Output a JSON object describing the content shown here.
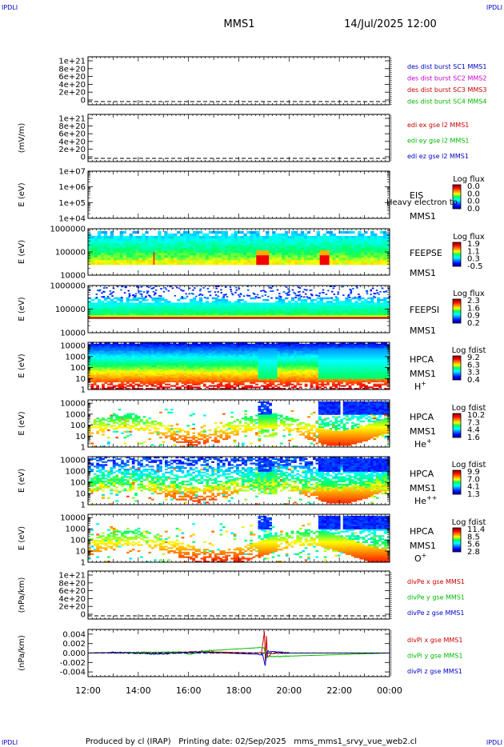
{
  "header": {
    "corner_tl": "IPDLI",
    "corner_tr": "IPDLI",
    "corner_bl": "IPDLI",
    "corner_br": "IPDLI",
    "title": "MMS1",
    "date": "14/Jul/2025 12:00"
  },
  "footer": {
    "text": "Produced by cl (IRAP)   Printing date: 02/Sep/2025   mms_mms1_srvy_vue_web2.cl"
  },
  "colors": {
    "blue": "#0000cc",
    "magenta": "#cc00cc",
    "red": "#cc0000",
    "green": "#00bb00"
  },
  "chart_data": [
    {
      "type": "line",
      "id": "des-dist",
      "ylabel": "",
      "yticks": [
        "1e+21",
        "8e+20",
        "6e+20",
        "4e+20",
        "2e+20",
        "0"
      ],
      "legend": [
        {
          "text": "des dist burst SC1 MMS1",
          "color": "#0000cc"
        },
        {
          "text": "des dist burst SC2 MMS2",
          "color": "#cc00cc"
        },
        {
          "text": "des dist burst SC3 MMS3",
          "color": "#cc0000"
        },
        {
          "text": "des dist burst SC4 MMS4",
          "color": "#00bb00"
        }
      ],
      "series": []
    },
    {
      "type": "line",
      "id": "edi",
      "ylabel": "(mV/m)",
      "yticks": [
        "1e+21",
        "8e+20",
        "6e+20",
        "4e+20",
        "2e+20",
        "0"
      ],
      "legend": [
        {
          "text": "edi ex gse l2 MMS1",
          "color": "#cc0000"
        },
        {
          "text": "edi ey gse l2 MMS1",
          "color": "#00bb00"
        },
        {
          "text": "edi ez gse l2 MMS1",
          "color": "#0000cc"
        }
      ],
      "series": []
    },
    {
      "type": "heatmap",
      "id": "eis",
      "ylabel": "E (eV)",
      "yticks": [
        "1e+07",
        "1e+06",
        "1e+05",
        "1e+04"
      ],
      "labels": [
        "EIS",
        "MMS1"
      ],
      "overlay": "Heavy electron to",
      "cbar_title": "Log flux",
      "cbar_ticks": [
        "0.0",
        "0.0",
        "0.0",
        "0.0"
      ],
      "yrange_log": [
        4,
        7
      ],
      "empty": true
    },
    {
      "type": "heatmap",
      "id": "feepse",
      "ylabel": "E (eV)",
      "yticks": [
        "1000000",
        "100000",
        "10000"
      ],
      "labels": [
        "FEEPSE",
        "MMS1"
      ],
      "cbar_title": "Log flux",
      "cbar_ticks": [
        "1.9",
        "1.1",
        "0.3",
        "-0.5"
      ],
      "yrange_log": [
        4,
        6
      ],
      "band_log": [
        4.45,
        5.9
      ]
    },
    {
      "type": "heatmap",
      "id": "feepsi",
      "ylabel": "E (eV)",
      "yticks": [
        "1000000",
        "100000",
        "10000"
      ],
      "labels": [
        "FEEPSI",
        "MMS1"
      ],
      "cbar_title": "Log flux",
      "cbar_ticks": [
        "2.3",
        "1.6",
        "0.9",
        "0.2"
      ],
      "yrange_log": [
        4,
        6
      ],
      "band_log": [
        4.6,
        5.5
      ]
    },
    {
      "type": "heatmap",
      "id": "hpca-h",
      "ylabel": "E (eV)",
      "yticks": [
        "10000",
        "1000",
        "100",
        "10",
        "1"
      ],
      "labels": [
        "HPCA",
        "MMS1"
      ],
      "species": "H",
      "charge": "+",
      "cbar_title": "Log fdist",
      "cbar_ticks": [
        "9.2",
        "6.3",
        "3.3",
        "0.4"
      ],
      "yrange_log": [
        0,
        4.3
      ]
    },
    {
      "type": "heatmap",
      "id": "hpca-he",
      "ylabel": "E (eV)",
      "yticks": [
        "10000",
        "1000",
        "100",
        "10",
        "1"
      ],
      "labels": [
        "HPCA",
        "MMS1"
      ],
      "species": "He",
      "charge": "+",
      "cbar_title": "Log fdist",
      "cbar_ticks": [
        "10.2",
        "7.3",
        "4.4",
        "1.6"
      ],
      "yrange_log": [
        0,
        4.3
      ]
    },
    {
      "type": "heatmap",
      "id": "hpca-he2",
      "ylabel": "E (eV)",
      "yticks": [
        "10000",
        "1000",
        "100",
        "10",
        "1"
      ],
      "labels": [
        "HPCA",
        "MMS1"
      ],
      "species": "He",
      "charge": "++",
      "cbar_title": "Log fdist",
      "cbar_ticks": [
        "9.9",
        "7.0",
        "4.1",
        "1.3"
      ],
      "yrange_log": [
        0,
        4.3
      ]
    },
    {
      "type": "heatmap",
      "id": "hpca-o",
      "ylabel": "E (eV)",
      "yticks": [
        "10000",
        "1000",
        "100",
        "10",
        "1"
      ],
      "labels": [
        "HPCA",
        "MMS1"
      ],
      "species": "O",
      "charge": "+",
      "cbar_title": "Log fdist",
      "cbar_ticks": [
        "11.4",
        "8.5",
        "5.6",
        "2.8"
      ],
      "yrange_log": [
        0,
        4.3
      ]
    },
    {
      "type": "line",
      "id": "divpe",
      "ylabel": "(nPa/km)",
      "yticks": [
        "1e+21",
        "8e+20",
        "6e+20",
        "4e+20",
        "2e+20",
        "0"
      ],
      "legend": [
        {
          "text": "divPe x gse MMS1",
          "color": "#cc0000"
        },
        {
          "text": "divPe y gse MMS1",
          "color": "#00bb00"
        },
        {
          "text": "divPe z gse MMS1",
          "color": "#0000cc"
        }
      ],
      "series": []
    },
    {
      "type": "line",
      "id": "divpi",
      "ylabel": "(nPa/km)",
      "yticks": [
        "0.004",
        "0.002",
        "0.000",
        "-0.002",
        "-0.004"
      ],
      "ylim": [
        -0.005,
        0.005
      ],
      "legend": [
        {
          "text": "divPi x gse MMS1",
          "color": "#cc0000"
        },
        {
          "text": "divPi y gse MMS1",
          "color": "#00bb00"
        },
        {
          "text": "divPi z gse MMS1",
          "color": "#0000cc"
        }
      ],
      "series": [
        {
          "name": "x",
          "color": "#cc0000",
          "points": [
            [
              12.0,
              0
            ],
            [
              13.0,
              0.0001
            ],
            [
              15.5,
              0.0001
            ],
            [
              16.5,
              0.0003
            ],
            [
              18.9,
              0
            ],
            [
              19.02,
              0.0045
            ],
            [
              19.06,
              -0.002
            ],
            [
              19.1,
              0.0035
            ],
            [
              19.15,
              -0.001
            ],
            [
              19.3,
              0
            ],
            [
              24.0,
              0
            ]
          ]
        },
        {
          "name": "y",
          "color": "#00bb00",
          "points": [
            [
              12.0,
              0
            ],
            [
              15.7,
              0.0002
            ],
            [
              16.1,
              -0.0003
            ],
            [
              16.5,
              0.0004
            ],
            [
              19.0,
              0.0012
            ],
            [
              19.1,
              -0.0008
            ],
            [
              24.0,
              0
            ]
          ]
        },
        {
          "name": "z",
          "color": "#0000cc",
          "points": [
            [
              12.0,
              0
            ],
            [
              13.0,
              0.0001
            ],
            [
              14.8,
              -0.0002
            ],
            [
              16.4,
              0.0002
            ],
            [
              18.95,
              -0.0003
            ],
            [
              19.05,
              -0.0028
            ],
            [
              19.12,
              0.0004
            ],
            [
              20.0,
              0
            ],
            [
              24.0,
              0
            ]
          ]
        }
      ]
    }
  ],
  "xaxis": {
    "range_hours": [
      12,
      24
    ],
    "ticks": [
      {
        "h": 12,
        "label": "12:00"
      },
      {
        "h": 14,
        "label": "14:00"
      },
      {
        "h": 16,
        "label": "16:00"
      },
      {
        "h": 18,
        "label": "18:00"
      },
      {
        "h": 20,
        "label": "20:00"
      },
      {
        "h": 22,
        "label": "22:00"
      },
      {
        "h": 24,
        "label": "00:00"
      }
    ]
  }
}
